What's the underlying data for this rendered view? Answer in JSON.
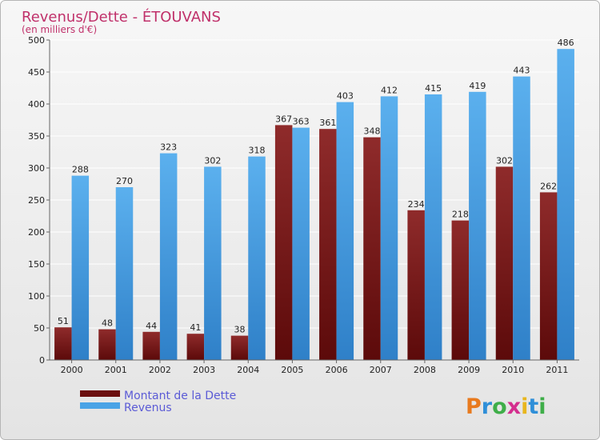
{
  "chart_data": {
    "type": "bar",
    "title": "Revenus/Dette - ÉTOUVANS",
    "subtitle": "(en milliers d'€)",
    "categories": [
      "2000",
      "2001",
      "2002",
      "2003",
      "2004",
      "2005",
      "2006",
      "2007",
      "2008",
      "2009",
      "2010",
      "2011"
    ],
    "series": [
      {
        "name": "Montant de la Dette",
        "color": "#7a1a1a",
        "values": [
          51,
          48,
          44,
          41,
          38,
          367,
          361,
          348,
          234,
          218,
          302,
          262
        ]
      },
      {
        "name": "Revenus",
        "color": "#4aa3e6",
        "values": [
          288,
          270,
          323,
          302,
          318,
          363,
          403,
          412,
          415,
          419,
          443,
          486
        ]
      }
    ],
    "yticks": [
      "0",
      "50",
      "100",
      "150",
      "200",
      "250",
      "300",
      "350",
      "400",
      "450",
      "500"
    ],
    "ylim": [
      0,
      500
    ],
    "grid": true,
    "legend_position": "bottom-left"
  },
  "colors": {
    "background": "#ececec",
    "title": "#c0306a",
    "legend_text": "#5b5bd6"
  },
  "logo": {
    "text": "Proxiti",
    "letter_colors": [
      "#e87a1e",
      "#2f8fd8",
      "#3fae49",
      "#d42e8e",
      "#e8b61e",
      "#2f8fd8",
      "#3fae49"
    ]
  }
}
